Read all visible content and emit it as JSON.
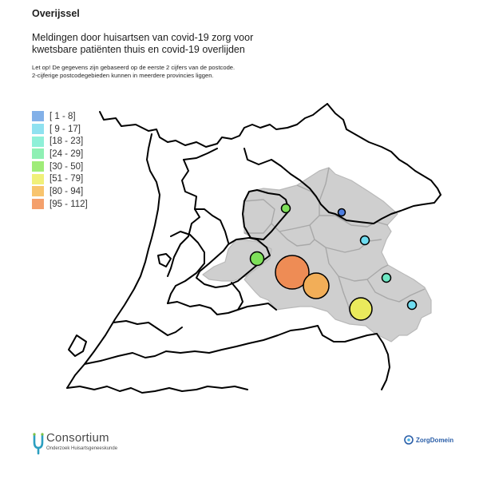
{
  "header": {
    "region": "Overijssel",
    "subtitle": "Meldingen door huisartsen van covid-19 zorg voor kwetsbare patiënten thuis en covid-19 overlijden",
    "note": "Let op! De gegevens zijn gebaseerd op de eerste 2 cijfers van de postcode. 2-cijferige postcodegebieden kunnen in meerdere provincies liggen."
  },
  "legend": {
    "items": [
      {
        "label": "[ 1 - 8]",
        "color": "#82b0e8"
      },
      {
        "label": "[ 9 - 17]",
        "color": "#8fe1f0"
      },
      {
        "label": "[18 - 23]",
        "color": "#8ff0d8"
      },
      {
        "label": "[24 - 29]",
        "color": "#8ff0b4"
      },
      {
        "label": "[30 - 50]",
        "color": "#9fec78"
      },
      {
        "label": "[51 - 79]",
        "color": "#f0f07a"
      },
      {
        "label": "[80 - 94]",
        "color": "#f8c46e"
      },
      {
        "label": "[95 - 112]",
        "color": "#f4a06c"
      }
    ]
  },
  "map": {
    "region_fill": "#cfcfcf",
    "region_stroke": "#b0b0b0",
    "border_color": "#000000",
    "markers": [
      {
        "area": "north-west",
        "class": "[30 - 50]",
        "color": "#7ee05a"
      },
      {
        "area": "north-east",
        "class": "[ 1 - 8]",
        "color": "#4e7ee0"
      },
      {
        "area": "west",
        "class": "[30 - 50]",
        "color": "#7ee05a"
      },
      {
        "area": "north-east-2",
        "class": "[ 9 - 17]",
        "color": "#6edcf0"
      },
      {
        "area": "centre-west",
        "class": "[95 - 112]",
        "color": "#ee8c55"
      },
      {
        "area": "centre",
        "class": "[80 - 94]",
        "color": "#f2ae58"
      },
      {
        "area": "east",
        "class": "[18 - 23]",
        "color": "#6ee8c4"
      },
      {
        "area": "south",
        "class": "[51 - 79]",
        "color": "#eaea5c"
      },
      {
        "area": "south-east",
        "class": "[ 9 - 17]",
        "color": "#6edcf0"
      }
    ]
  },
  "footer": {
    "logo_left": "Consortium",
    "logo_left_sub": "Onderzoek Huisartsgeneeskunde",
    "logo_right": "ZorgDomein"
  }
}
